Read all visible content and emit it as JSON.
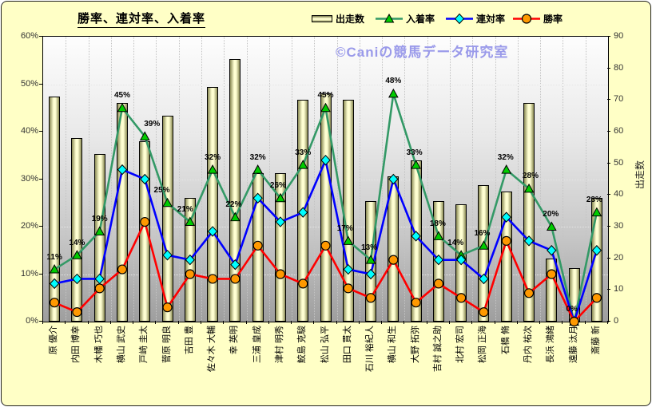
{
  "title": "勝率、連対率、入着率",
  "watermark": "©Caniの競馬データ研究室",
  "legend": [
    {
      "label": "出走数",
      "type": "bar",
      "fill": "#ffffcc",
      "edge": "#000000"
    },
    {
      "label": "入着率",
      "type": "line",
      "line_color": "#339966",
      "marker": "triangle",
      "marker_color": "#00cc00"
    },
    {
      "label": "連対率",
      "type": "line",
      "line_color": "#0000ff",
      "marker": "diamond",
      "marker_color": "#00ffff"
    },
    {
      "label": "勝率",
      "type": "line",
      "line_color": "#ff0000",
      "marker": "circle",
      "marker_color": "#ff9900"
    }
  ],
  "colors": {
    "background": "#ffffc6",
    "plot_top": "#fdfdfd",
    "plot_bottom": "#9e9e9e",
    "watermark": "#9a9aea"
  },
  "chart_data": {
    "type": "bar",
    "subtype": "bar+line combo (Excel style)",
    "categories": [
      "原 優介",
      "内田 博幸",
      "木幡 巧也",
      "横山 武史",
      "戸崎 圭太",
      "菅原 明良",
      "吉田 豊",
      "佐々木 大輔",
      "幸 英明",
      "三浦 皇成",
      "津村 明秀",
      "鮫島 克駿",
      "松山 弘平",
      "田口 貫太",
      "石川 裕紀人",
      "横山 和生",
      "大野 拓弥",
      "吉村 誠之助",
      "北村 宏司",
      "松岡 正海",
      "石橋 脩",
      "丹内 祐次",
      "長浜 鴻緒",
      "遠藤 汰月",
      "斎藤 新"
    ],
    "series": [
      {
        "name": "出走数",
        "type": "bar",
        "axis": "right",
        "values": [
          71,
          58,
          53,
          69,
          57,
          65,
          39,
          74,
          83,
          47,
          47,
          70,
          72,
          70,
          38,
          46,
          51,
          38,
          37,
          43,
          41,
          69,
          20,
          17,
          39
        ]
      },
      {
        "name": "入着率",
        "type": "line",
        "axis": "left",
        "unit": "%",
        "labeled": true,
        "values": [
          11,
          14,
          19,
          45,
          39,
          25,
          21,
          32,
          22,
          32,
          26,
          33,
          45,
          17,
          13,
          48,
          33,
          18,
          14,
          16,
          32,
          28,
          20,
          0,
          23
        ]
      },
      {
        "name": "連対率",
        "type": "line",
        "axis": "left",
        "unit": "%",
        "values": [
          8,
          9,
          9,
          32,
          30,
          14,
          13,
          19,
          12,
          26,
          21,
          23,
          34,
          11,
          10,
          30,
          18,
          13,
          13,
          9,
          22,
          17,
          15,
          0,
          15
        ]
      },
      {
        "name": "勝率",
        "type": "line",
        "axis": "left",
        "unit": "%",
        "values": [
          4,
          2,
          7,
          11,
          21,
          3,
          10,
          9,
          9,
          16,
          10,
          8,
          16,
          7,
          5,
          13,
          4,
          8,
          5,
          2,
          17,
          6,
          10,
          0,
          5
        ]
      }
    ],
    "left_axis": {
      "min": 0,
      "max": 60,
      "step": 10,
      "ticks": [
        "60%",
        "50%",
        "40%",
        "30%",
        "20%",
        "10%",
        "0%"
      ]
    },
    "right_axis": {
      "min": 0,
      "max": 90,
      "step": 10,
      "title": "出走数",
      "ticks": [
        "90",
        "80",
        "70",
        "60",
        "50",
        "40",
        "30",
        "20",
        "10",
        "0"
      ]
    },
    "grid": true,
    "legend_position": "top"
  }
}
